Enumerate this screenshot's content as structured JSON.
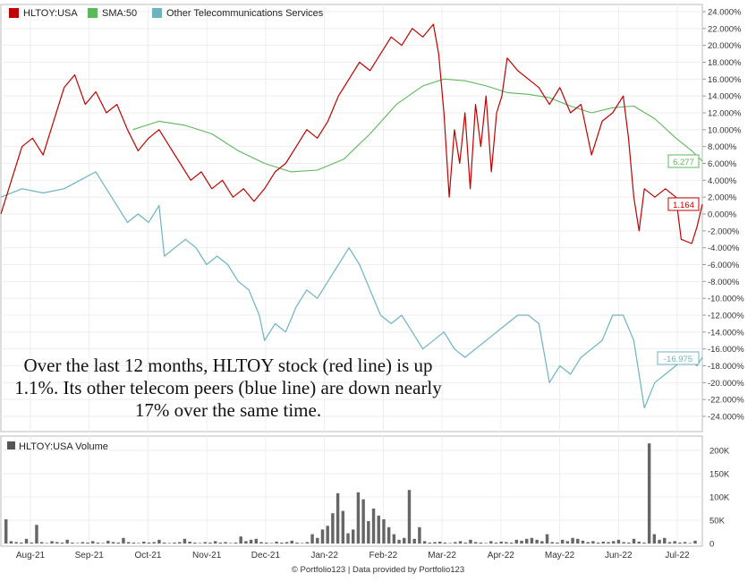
{
  "legend": {
    "items": [
      {
        "label": "HLTOY:USA",
        "color": "#c00000"
      },
      {
        "label": "SMA:50",
        "color": "#5cb85c"
      },
      {
        "label": "Other Telecommunications Services",
        "color": "#6db3c2"
      }
    ],
    "volume_label": "HLTOY:USA Volume"
  },
  "callout_text": "Over the last 12 months, HLTOY stock (red line) is up 1.1%. Its other telecom peers (blue line) are down nearly 17% over the same time.",
  "footer": "© Portfolio123 | Data provided by Portfolio123",
  "end_labels": {
    "hltoy": "1.164",
    "sma": "6.277",
    "peers": "-16.975"
  },
  "chart_data": {
    "type": "line",
    "x_labels": [
      "Aug-21",
      "Sep-21",
      "Oct-21",
      "Nov-21",
      "Dec-21",
      "Jan-22",
      "Feb-22",
      "Mar-22",
      "Apr-22",
      "May-22",
      "Jun-22",
      "Jul-22"
    ],
    "y_ticks": [
      "24.000%",
      "22.000%",
      "20.000%",
      "18.000%",
      "16.000%",
      "14.000%",
      "12.000%",
      "10.000%",
      "8.000%",
      "6.000%",
      "4.000%",
      "2.000%",
      "0.000%",
      "-2.000%",
      "-4.000%",
      "-6.000%",
      "-8.000%",
      "-10.000%",
      "-12.000%",
      "-14.000%",
      "-16.000%",
      "-18.000%",
      "-20.000%",
      "-22.000%",
      "-24.000%"
    ],
    "ylim": [
      -24,
      24
    ],
    "volume_ticks": [
      "200K",
      "150K",
      "100K",
      "50K",
      "0"
    ],
    "volume_ylim": [
      0,
      200
    ],
    "series": [
      {
        "name": "HLTOY:USA",
        "color": "#c00000",
        "points": [
          [
            0,
            0
          ],
          [
            4,
            4
          ],
          [
            8,
            8
          ],
          [
            12,
            9
          ],
          [
            16,
            7
          ],
          [
            20,
            11
          ],
          [
            24,
            15
          ],
          [
            28,
            16.5
          ],
          [
            32,
            13
          ],
          [
            36,
            14.5
          ],
          [
            40,
            12
          ],
          [
            44,
            13
          ],
          [
            48,
            10
          ],
          [
            52,
            7.5
          ],
          [
            56,
            9
          ],
          [
            60,
            10
          ],
          [
            64,
            8
          ],
          [
            68,
            6
          ],
          [
            72,
            4
          ],
          [
            76,
            5
          ],
          [
            80,
            3
          ],
          [
            84,
            4
          ],
          [
            88,
            2
          ],
          [
            92,
            3
          ],
          [
            96,
            1.5
          ],
          [
            100,
            3
          ],
          [
            104,
            5
          ],
          [
            108,
            6
          ],
          [
            112,
            8
          ],
          [
            116,
            10
          ],
          [
            120,
            9
          ],
          [
            124,
            11
          ],
          [
            128,
            14
          ],
          [
            132,
            16
          ],
          [
            136,
            18
          ],
          [
            140,
            17
          ],
          [
            144,
            19
          ],
          [
            148,
            21
          ],
          [
            152,
            20
          ],
          [
            156,
            22
          ],
          [
            160,
            21
          ],
          [
            164,
            22.5
          ],
          [
            166,
            19
          ],
          [
            168,
            12
          ],
          [
            170,
            2
          ],
          [
            172,
            10
          ],
          [
            174,
            6
          ],
          [
            176,
            12
          ],
          [
            178,
            3
          ],
          [
            180,
            13
          ],
          [
            182,
            8
          ],
          [
            184,
            14
          ],
          [
            186,
            5
          ],
          [
            188,
            12
          ],
          [
            190,
            14
          ],
          [
            192,
            18.5
          ],
          [
            196,
            17
          ],
          [
            200,
            16
          ],
          [
            204,
            15
          ],
          [
            208,
            13
          ],
          [
            212,
            15
          ],
          [
            216,
            12
          ],
          [
            220,
            13
          ],
          [
            224,
            7
          ],
          [
            228,
            11
          ],
          [
            232,
            12
          ],
          [
            236,
            14
          ],
          [
            238,
            9
          ],
          [
            240,
            2
          ],
          [
            242,
            -2
          ],
          [
            244,
            3
          ],
          [
            248,
            2
          ],
          [
            252,
            3
          ],
          [
            256,
            2
          ],
          [
            258,
            -3
          ],
          [
            262,
            -3.5
          ],
          [
            264,
            -1.5
          ],
          [
            266,
            1.16
          ]
        ]
      },
      {
        "name": "SMA:50",
        "color": "#5cb85c",
        "points": [
          [
            50,
            10
          ],
          [
            60,
            11
          ],
          [
            70,
            10.5
          ],
          [
            80,
            9.5
          ],
          [
            90,
            7.5
          ],
          [
            100,
            6
          ],
          [
            110,
            5
          ],
          [
            120,
            5.2
          ],
          [
            130,
            6.5
          ],
          [
            140,
            9.5
          ],
          [
            150,
            13
          ],
          [
            160,
            15.2
          ],
          [
            168,
            16
          ],
          [
            176,
            15.8
          ],
          [
            184,
            15.2
          ],
          [
            192,
            14.4
          ],
          [
            200,
            14.2
          ],
          [
            208,
            13.8
          ],
          [
            216,
            12.8
          ],
          [
            224,
            12
          ],
          [
            232,
            12.6
          ],
          [
            240,
            12.8
          ],
          [
            248,
            11.3
          ],
          [
            256,
            9
          ],
          [
            262,
            7.5
          ],
          [
            266,
            6.28
          ]
        ]
      },
      {
        "name": "Other Telecommunications Services",
        "color": "#6db3c2",
        "points": [
          [
            0,
            2
          ],
          [
            8,
            3
          ],
          [
            16,
            2.5
          ],
          [
            24,
            3
          ],
          [
            30,
            4
          ],
          [
            36,
            5
          ],
          [
            40,
            3
          ],
          [
            44,
            1
          ],
          [
            48,
            -1
          ],
          [
            52,
            0
          ],
          [
            56,
            -1
          ],
          [
            60,
            1
          ],
          [
            62,
            -5
          ],
          [
            66,
            -4
          ],
          [
            70,
            -3
          ],
          [
            74,
            -4
          ],
          [
            78,
            -6
          ],
          [
            82,
            -5
          ],
          [
            86,
            -6
          ],
          [
            90,
            -8
          ],
          [
            94,
            -9
          ],
          [
            98,
            -12
          ],
          [
            100,
            -15
          ],
          [
            104,
            -13
          ],
          [
            108,
            -14
          ],
          [
            112,
            -11
          ],
          [
            116,
            -9
          ],
          [
            120,
            -10
          ],
          [
            124,
            -8
          ],
          [
            128,
            -6
          ],
          [
            132,
            -4
          ],
          [
            136,
            -6
          ],
          [
            140,
            -9
          ],
          [
            144,
            -12
          ],
          [
            148,
            -13
          ],
          [
            152,
            -12
          ],
          [
            156,
            -14
          ],
          [
            160,
            -16
          ],
          [
            164,
            -15
          ],
          [
            168,
            -14
          ],
          [
            172,
            -16
          ],
          [
            176,
            -17
          ],
          [
            180,
            -16
          ],
          [
            184,
            -15
          ],
          [
            188,
            -14
          ],
          [
            192,
            -13
          ],
          [
            196,
            -12
          ],
          [
            200,
            -12
          ],
          [
            204,
            -13
          ],
          [
            208,
            -20
          ],
          [
            212,
            -18
          ],
          [
            216,
            -19
          ],
          [
            220,
            -17
          ],
          [
            224,
            -16
          ],
          [
            228,
            -15
          ],
          [
            232,
            -12
          ],
          [
            236,
            -12
          ],
          [
            240,
            -15
          ],
          [
            244,
            -23
          ],
          [
            248,
            -20
          ],
          [
            252,
            -19
          ],
          [
            256,
            -18
          ],
          [
            260,
            -17
          ],
          [
            264,
            -18
          ],
          [
            266,
            -17
          ]
        ]
      }
    ],
    "volume": [
      52,
      5,
      3,
      2,
      10,
      2,
      40,
      3,
      1,
      5,
      3,
      2,
      8,
      2,
      1,
      3,
      2,
      5,
      2,
      1,
      6,
      3,
      2,
      12,
      3,
      2,
      1,
      4,
      2,
      3,
      8,
      2,
      1,
      2,
      3,
      10,
      4,
      2,
      1,
      3,
      2,
      5,
      2,
      3,
      1,
      2,
      15,
      5,
      8,
      10,
      3,
      2,
      1,
      4,
      2,
      3,
      6,
      2,
      1,
      3,
      20,
      12,
      30,
      38,
      65,
      108,
      70,
      22,
      30,
      110,
      95,
      48,
      75,
      60,
      52,
      35,
      20,
      8,
      12,
      115,
      10,
      35,
      5,
      2,
      3,
      4,
      2,
      1,
      3,
      5,
      2,
      8,
      3,
      2,
      1,
      5,
      2,
      4,
      3,
      2,
      8,
      6,
      10,
      12,
      8,
      5,
      20,
      3,
      2,
      8,
      5,
      12,
      10,
      6,
      3,
      5,
      2,
      4,
      3,
      5,
      8,
      3,
      2,
      10,
      4,
      2,
      215,
      20,
      8,
      12,
      3,
      5,
      2,
      3,
      1,
      6
    ],
    "volume_series": "HLTOY:USA Volume"
  }
}
